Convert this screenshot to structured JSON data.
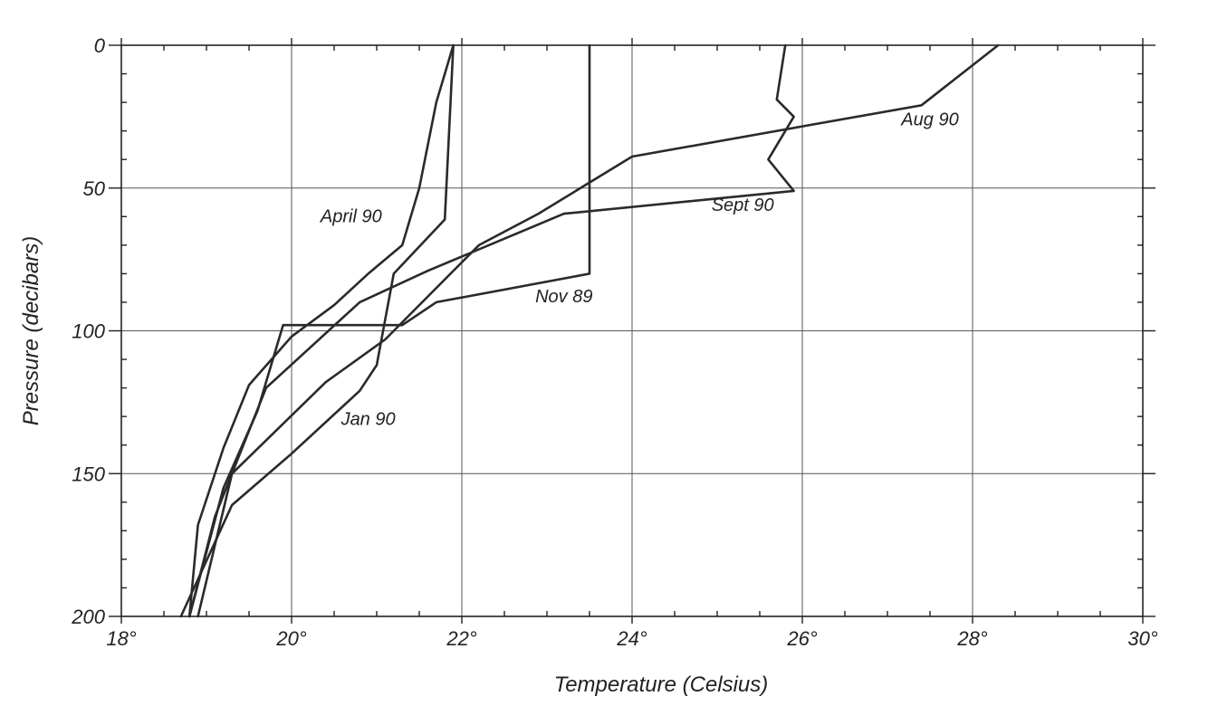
{
  "chart_data": {
    "type": "line",
    "title": "",
    "xlabel": "Temperature (Celsius)",
    "ylabel": "Pressure (decibars)",
    "xlim": [
      18,
      30
    ],
    "ylim": [
      0,
      200
    ],
    "y_inverted": true,
    "grid": true,
    "x_ticks": [
      18,
      20,
      22,
      24,
      26,
      28,
      30
    ],
    "x_tick_labels": [
      "18°",
      "20°",
      "22°",
      "24°",
      "26°",
      "28°",
      "30°"
    ],
    "y_ticks": [
      0,
      50,
      100,
      150,
      200
    ],
    "y_tick_labels": [
      "0",
      "50",
      "100",
      "150",
      "200"
    ],
    "line_color": "#2a2a2a",
    "series": [
      {
        "name": "Nov 89",
        "points": [
          [
            23.5,
            0
          ],
          [
            23.5,
            20
          ],
          [
            23.5,
            80
          ],
          [
            21.7,
            90
          ],
          [
            21.3,
            98
          ],
          [
            19.9,
            98
          ],
          [
            19.6,
            128
          ],
          [
            19.2,
            155
          ],
          [
            18.8,
            200
          ]
        ]
      },
      {
        "name": "April 90",
        "points": [
          [
            21.9,
            0
          ],
          [
            21.7,
            20
          ],
          [
            21.5,
            50
          ],
          [
            21.3,
            70
          ],
          [
            20.9,
            80
          ],
          [
            20.5,
            91
          ],
          [
            20.0,
            102
          ],
          [
            19.5,
            119
          ],
          [
            19.2,
            141
          ],
          [
            18.9,
            168
          ],
          [
            18.8,
            200
          ]
        ]
      },
      {
        "name": "Jan 90",
        "points": [
          [
            21.9,
            0
          ],
          [
            21.8,
            61
          ],
          [
            21.2,
            80
          ],
          [
            21.0,
            112
          ],
          [
            20.8,
            121
          ],
          [
            20.0,
            143
          ],
          [
            19.3,
            161
          ],
          [
            18.7,
            200
          ]
        ]
      },
      {
        "name": "Aug 90",
        "points": [
          [
            28.3,
            0
          ],
          [
            27.4,
            21
          ],
          [
            24.0,
            39
          ],
          [
            22.9,
            59
          ],
          [
            22.2,
            70
          ],
          [
            21.1,
            103
          ],
          [
            20.4,
            118
          ],
          [
            19.3,
            150
          ],
          [
            18.9,
            200
          ]
        ]
      },
      {
        "name": "Sept 90",
        "points": [
          [
            25.8,
            0
          ],
          [
            25.7,
            19
          ],
          [
            25.9,
            25
          ],
          [
            25.6,
            40
          ],
          [
            25.9,
            51
          ],
          [
            23.2,
            59
          ],
          [
            21.6,
            79
          ],
          [
            20.8,
            90
          ],
          [
            19.7,
            120
          ],
          [
            19.1,
            165
          ],
          [
            18.8,
            200
          ]
        ]
      }
    ],
    "annotations": [
      {
        "text": "April 90",
        "x": 20.7,
        "y": 62
      },
      {
        "text": "Aug 90",
        "x": 27.5,
        "y": 28
      },
      {
        "text": "Sept 90",
        "x": 25.3,
        "y": 58
      },
      {
        "text": "Nov 89",
        "x": 23.2,
        "y": 90
      },
      {
        "text": "Jan 90",
        "x": 20.9,
        "y": 133
      }
    ]
  }
}
